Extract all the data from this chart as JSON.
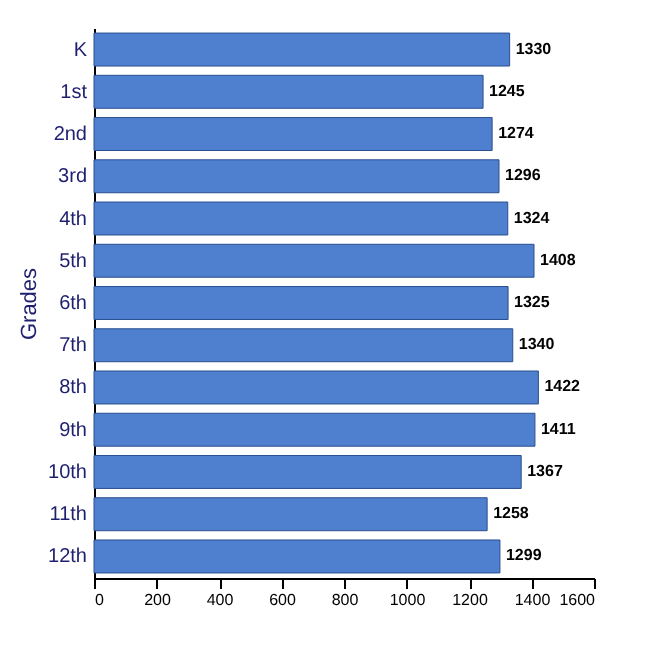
{
  "chart_data": {
    "type": "bar",
    "orientation": "horizontal",
    "ylabel": "Grades",
    "categories": [
      "K",
      "1st",
      "2nd",
      "3rd",
      "4th",
      "5th",
      "6th",
      "7th",
      "8th",
      "9th",
      "10th",
      "11th",
      "12th"
    ],
    "values": [
      1330,
      1245,
      1274,
      1296,
      1324,
      1408,
      1325,
      1340,
      1422,
      1411,
      1367,
      1258,
      1299
    ],
    "color": "#4f7fcf",
    "xlim": [
      0,
      1600
    ],
    "xticks": [
      0,
      200,
      400,
      600,
      800,
      1000,
      1200,
      1400,
      1600
    ],
    "data_labels": true,
    "grid": false
  }
}
